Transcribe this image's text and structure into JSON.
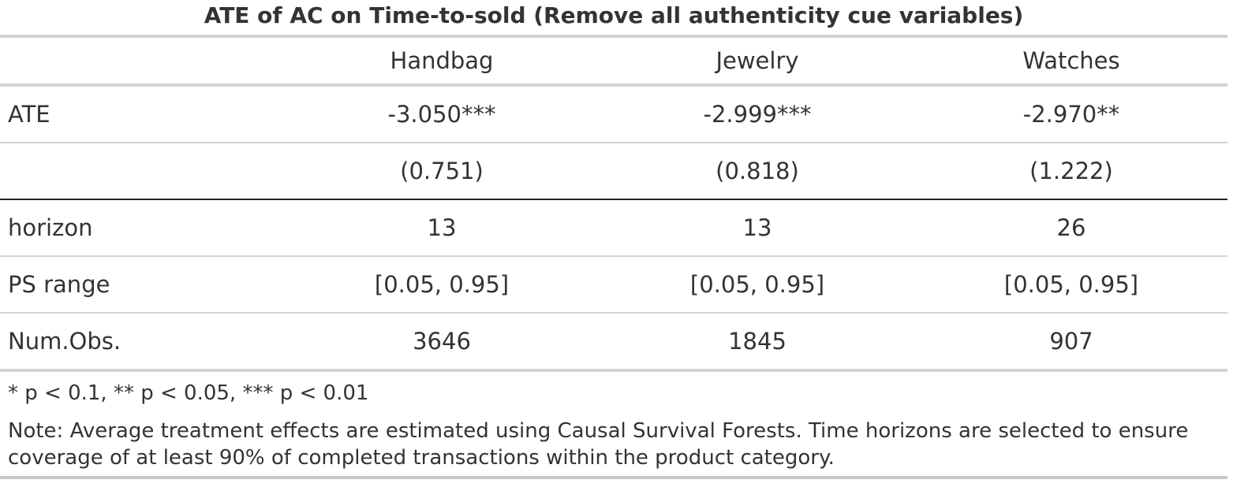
{
  "title": "ATE of AC on Time-to-sold (Remove all authenticity cue variables)",
  "columns": [
    "",
    "Handbag",
    "Jewelry",
    "Watches"
  ],
  "rows": [
    {
      "label": "ATE",
      "values": [
        "-3.050***",
        "-2.999***",
        "-2.970**"
      ]
    },
    {
      "label": "",
      "values": [
        "(0.751)",
        "(0.818)",
        "(1.222)"
      ]
    },
    {
      "label": "horizon",
      "values": [
        "13",
        "13",
        "26"
      ]
    },
    {
      "label": "PS range",
      "values": [
        "[0.05, 0.95]",
        "[0.05, 0.95]",
        "[0.05, 0.95]"
      ]
    },
    {
      "label": "Num.Obs.",
      "values": [
        "3646",
        "1845",
        "907"
      ]
    }
  ],
  "footnote_significance": "* p < 0.1, ** p < 0.05, *** p < 0.01",
  "footnote_note": "Note: Average treatment effects are estimated using Causal Survival Forests. Time horizons are selected to ensure coverage of at least 90% of completed transactions within the product category."
}
